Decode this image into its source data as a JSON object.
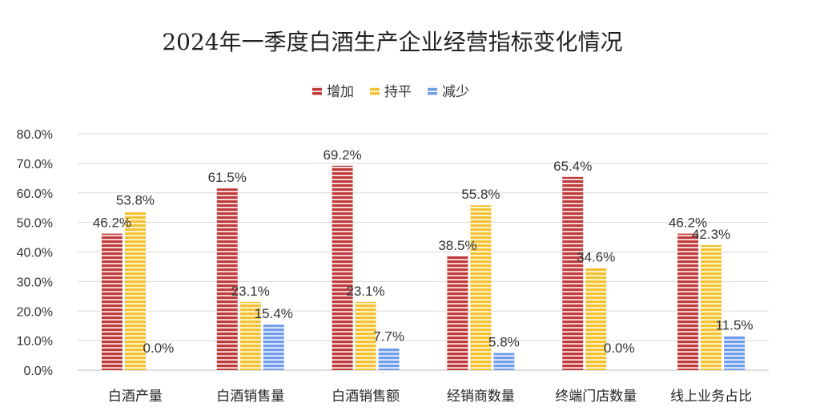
{
  "chart_data": {
    "type": "bar",
    "title": "2024年一季度白酒生产企业经营指标变化情况",
    "categories": [
      "白酒产量",
      "白酒销售量",
      "白酒销售额",
      "经销商数量",
      "终端门店数量",
      "线上业务占比"
    ],
    "series": [
      {
        "name": "增加",
        "color": "#c0393b",
        "values": [
          46.2,
          61.5,
          69.2,
          38.5,
          65.4,
          46.2
        ]
      },
      {
        "name": "持平",
        "color": "#f2c12e",
        "values": [
          53.8,
          23.1,
          23.1,
          55.8,
          34.6,
          42.3
        ]
      },
      {
        "name": "减少",
        "color": "#6f9ceb",
        "values": [
          0.0,
          15.4,
          7.7,
          5.8,
          0.0,
          11.5
        ]
      }
    ],
    "ylim": [
      0,
      80
    ],
    "yticks": [
      0,
      10,
      20,
      30,
      40,
      50,
      60,
      70,
      80
    ],
    "value_format": "percent_one_decimal",
    "legend_position": "top",
    "grid": true
  }
}
